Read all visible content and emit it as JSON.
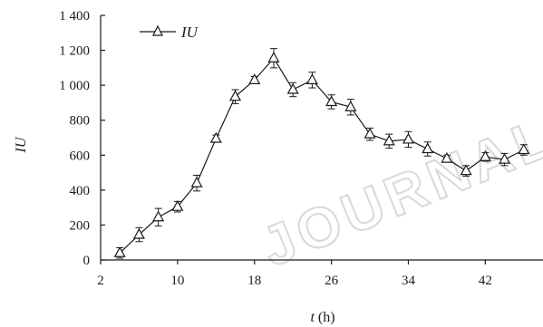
{
  "chart_data": {
    "type": "line",
    "xlabel_var": "t",
    "xlabel_unit": " (h)",
    "ylabel": "IU",
    "xlim": [
      2,
      48
    ],
    "ylim": [
      0,
      1400
    ],
    "x_ticks": [
      2,
      10,
      18,
      26,
      34,
      42
    ],
    "y_ticks": [
      0,
      200,
      400,
      600,
      800,
      1000,
      1200,
      1400
    ],
    "y_tick_labels": [
      "0",
      "200",
      "400",
      "600",
      "800",
      "1 000",
      "1 200",
      "1 400"
    ],
    "grid": false,
    "legend_position": "top-left",
    "marker": "open-triangle",
    "line_color": "#1a1a1a",
    "series": [
      {
        "name": "IU",
        "x": [
          4,
          6,
          8,
          10,
          12,
          14,
          16,
          18,
          20,
          22,
          24,
          26,
          28,
          30,
          32,
          34,
          36,
          38,
          40,
          42,
          44,
          46
        ],
        "values": [
          40,
          145,
          245,
          305,
          440,
          695,
          935,
          1030,
          1155,
          975,
          1030,
          905,
          875,
          720,
          680,
          690,
          635,
          580,
          510,
          590,
          575,
          630
        ],
        "errors": [
          30,
          40,
          50,
          30,
          45,
          20,
          40,
          20,
          55,
          40,
          45,
          40,
          45,
          35,
          40,
          45,
          40,
          20,
          30,
          25,
          35,
          30
        ]
      }
    ]
  },
  "watermark": "JOURNALS"
}
